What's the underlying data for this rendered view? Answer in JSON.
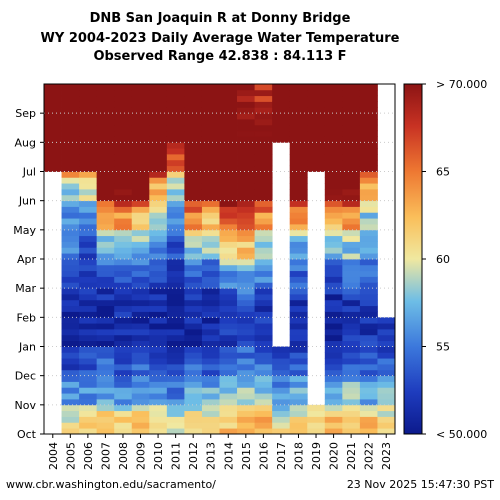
{
  "title": {
    "line1": "DNB San Joaquin R at Donny Bridge",
    "line2": "WY 2004-2023 Daily Average Water Temperature",
    "line3": "Observed Range 42.838 : 84.113 F"
  },
  "footer": {
    "url": "www.cbr.washington.edu/sacramento/",
    "timestamp": "23 Nov 2025 15:47:30 PST"
  },
  "chart_data": {
    "type": "heatmap",
    "x_categories": [
      "2004",
      "2005",
      "2006",
      "2007",
      "2008",
      "2009",
      "2010",
      "2011",
      "2012",
      "2013",
      "2014",
      "2015",
      "2016",
      "2017",
      "2018",
      "2019",
      "2020",
      "2021",
      "2022",
      "2023"
    ],
    "y_tick_labels": [
      "Oct",
      "Nov",
      "Dec",
      "Jan",
      "Feb",
      "Mar",
      "Apr",
      "May",
      "Jun",
      "Jul",
      "Aug",
      "Sep"
    ],
    "colorbar": {
      "tick_labels": [
        "< 50.000",
        "55",
        "60",
        "65",
        "> 70.000"
      ],
      "ticks": [
        50,
        55,
        60,
        65,
        70
      ],
      "range": [
        50,
        70
      ]
    },
    "colors": {
      "low": "#0c1a8c",
      "mid": "#f0e8a0",
      "high": "#8c1414",
      "missing": "#ffffff"
    },
    "month_profile_by_year": {
      "2004": [
        null,
        null,
        null,
        null,
        null,
        null,
        null,
        null,
        null,
        75,
        78,
        75
      ],
      "2005": [
        60,
        56,
        53,
        51,
        51,
        53,
        55,
        56,
        58,
        74,
        78,
        75
      ],
      "2006": [
        62,
        56,
        53,
        51,
        51,
        52,
        53,
        56,
        59,
        71,
        77,
        75
      ],
      "2007": [
        62,
        57,
        54,
        51,
        51,
        53,
        57,
        62,
        72,
        76,
        77,
        75
      ],
      "2008": [
        61,
        56,
        53,
        51,
        52,
        53,
        57,
        64,
        71,
        76,
        77,
        75
      ],
      "2009": [
        62,
        57,
        54,
        51,
        52,
        54,
        57,
        62,
        72,
        76,
        77,
        75
      ],
      "2010": [
        60,
        56,
        53,
        51,
        51,
        53,
        56,
        58,
        63,
        74,
        77,
        75
      ],
      "2011": [
        60,
        55,
        53,
        51,
        51,
        52,
        53,
        55,
        58,
        66,
        73,
        73
      ],
      "2012": [
        61,
        57,
        54,
        51,
        52,
        54,
        58,
        64,
        72,
        76,
        77,
        75
      ],
      "2013": [
        61,
        57,
        54,
        51,
        51,
        53,
        58,
        62,
        72,
        76,
        77,
        75
      ],
      "2014": [
        62,
        58,
        55,
        52,
        53,
        56,
        61,
        66,
        74,
        76,
        76,
        73
      ],
      "2015": [
        62,
        58,
        55,
        53,
        53,
        57,
        62,
        67,
        72,
        73,
        71,
        70
      ],
      "2016": [
        63,
        58,
        55,
        52,
        52,
        55,
        58,
        64,
        72,
        74,
        70,
        68
      ],
      "2017": [
        60,
        56,
        53,
        null,
        null,
        null,
        null,
        null,
        null,
        null,
        77,
        75
      ],
      "2018": [
        61,
        57,
        54,
        51,
        52,
        54,
        57,
        64,
        71,
        74,
        73,
        71
      ],
      "2019": [
        61,
        null,
        null,
        null,
        null,
        null,
        null,
        null,
        null,
        74,
        75,
        74
      ],
      "2020": [
        62,
        57,
        53,
        51,
        51,
        53,
        57,
        62,
        71,
        76,
        77,
        75
      ],
      "2021": [
        62,
        58,
        54,
        52,
        52,
        54,
        58,
        64,
        71,
        76,
        77,
        75
      ],
      "2022": [
        62,
        57,
        54,
        52,
        52,
        54,
        56,
        58,
        62,
        72,
        76,
        75
      ],
      "2023": [
        61,
        57,
        54,
        52,
        null,
        null,
        null,
        null,
        null,
        null,
        null,
        null
      ]
    },
    "ylim": [
      "Oct",
      "Sep"
    ],
    "grid": true,
    "legend": "colorbar-right"
  }
}
